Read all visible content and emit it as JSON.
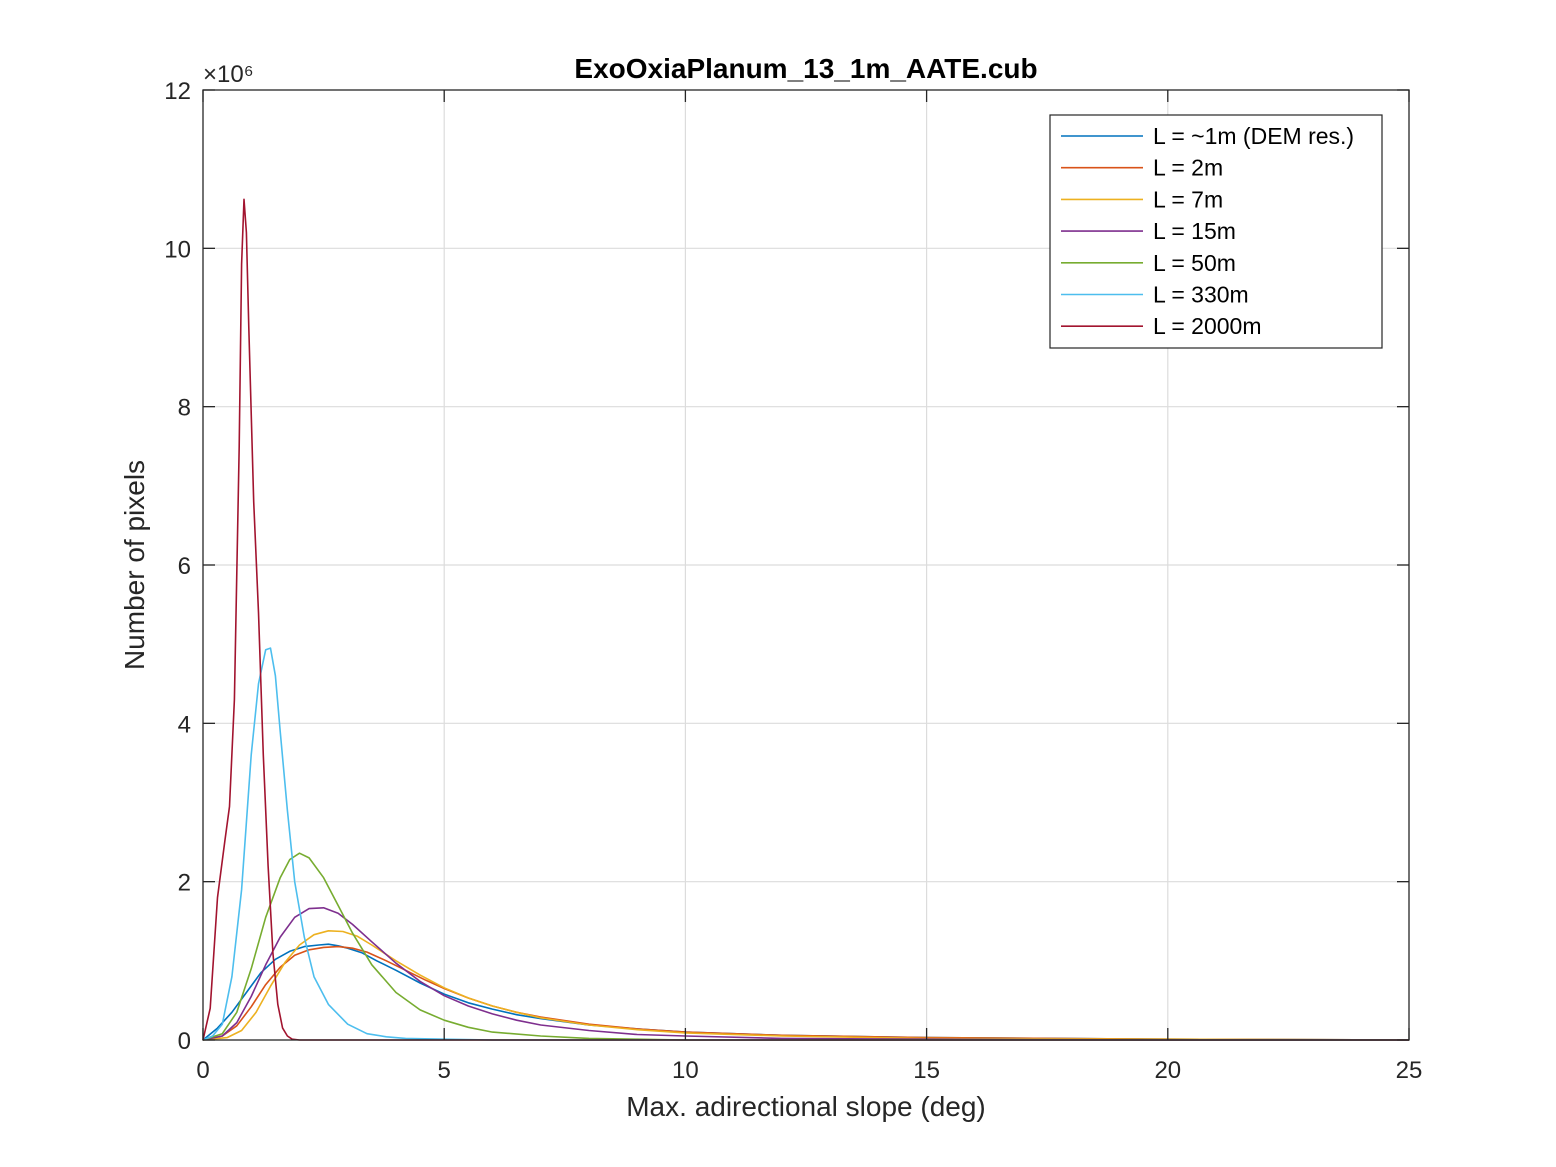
{
  "chart_data": {
    "type": "line",
    "title": "ExoOxiaPlanum_13_1m_AATE.cub",
    "xlabel": "Max. adirectional slope (deg)",
    "ylabel": "Number of pixels",
    "xlim": [
      0,
      25
    ],
    "ylim": [
      0,
      12
    ],
    "y_exponent_label": "×10⁶",
    "xticks": [
      "0",
      "5",
      "10",
      "15",
      "20",
      "25"
    ],
    "yticks": [
      "0",
      "2",
      "4",
      "6",
      "8",
      "10",
      "12"
    ],
    "grid": true,
    "legend_position": "top-right",
    "series": [
      {
        "name": "L = ~1m (DEM res.)",
        "color": "#0072bd",
        "x": [
          0,
          0.3,
          0.6,
          0.9,
          1.2,
          1.5,
          1.8,
          2.1,
          2.4,
          2.6,
          2.8,
          3.0,
          3.3,
          3.6,
          4.0,
          4.5,
          5.0,
          5.5,
          6.0,
          6.5,
          7.0,
          8.0,
          9.0,
          10.0,
          12.0,
          15.0,
          20.0,
          25.0
        ],
        "y": [
          0,
          0.15,
          0.35,
          0.6,
          0.85,
          1.02,
          1.12,
          1.18,
          1.2,
          1.21,
          1.19,
          1.16,
          1.1,
          1.0,
          0.88,
          0.72,
          0.58,
          0.47,
          0.39,
          0.32,
          0.27,
          0.19,
          0.14,
          0.1,
          0.06,
          0.03,
          0.01,
          0.0
        ]
      },
      {
        "name": "L = 2m",
        "color": "#d95319",
        "x": [
          0,
          0.4,
          0.7,
          1.0,
          1.3,
          1.6,
          1.9,
          2.2,
          2.5,
          2.8,
          3.1,
          3.4,
          3.8,
          4.2,
          4.6,
          5.0,
          5.5,
          6.0,
          6.5,
          7.0,
          8.0,
          9.0,
          10.0,
          12.0,
          15.0,
          20.0,
          25.0
        ],
        "y": [
          0,
          0.05,
          0.18,
          0.42,
          0.7,
          0.92,
          1.07,
          1.14,
          1.17,
          1.18,
          1.16,
          1.11,
          1.0,
          0.88,
          0.76,
          0.65,
          0.53,
          0.43,
          0.35,
          0.29,
          0.2,
          0.14,
          0.1,
          0.06,
          0.03,
          0.01,
          0.0
        ]
      },
      {
        "name": "L = 7m",
        "color": "#edb120",
        "x": [
          0,
          0.5,
          0.8,
          1.1,
          1.4,
          1.7,
          2.0,
          2.3,
          2.6,
          2.9,
          3.2,
          3.5,
          4.0,
          4.5,
          5.0,
          5.5,
          6.0,
          6.5,
          7.0,
          8.0,
          9.0,
          10.0,
          12.0,
          15.0,
          20.0,
          25.0
        ],
        "y": [
          0,
          0.03,
          0.12,
          0.35,
          0.68,
          0.98,
          1.2,
          1.33,
          1.38,
          1.37,
          1.31,
          1.2,
          1.0,
          0.82,
          0.66,
          0.53,
          0.43,
          0.35,
          0.28,
          0.19,
          0.13,
          0.09,
          0.05,
          0.02,
          0.01,
          0.0
        ]
      },
      {
        "name": "L = 15m",
        "color": "#7e2f8e",
        "x": [
          0,
          0.4,
          0.7,
          1.0,
          1.3,
          1.6,
          1.9,
          2.2,
          2.5,
          2.8,
          3.1,
          3.5,
          4.0,
          4.5,
          5.0,
          5.5,
          6.0,
          6.5,
          7.0,
          8.0,
          9.0,
          10.0,
          12.0,
          15.0,
          20.0,
          25.0
        ],
        "y": [
          0,
          0.05,
          0.22,
          0.55,
          0.95,
          1.3,
          1.55,
          1.66,
          1.67,
          1.6,
          1.46,
          1.24,
          0.97,
          0.74,
          0.56,
          0.43,
          0.33,
          0.25,
          0.19,
          0.12,
          0.07,
          0.05,
          0.02,
          0.01,
          0.0,
          0.0
        ]
      },
      {
        "name": "L = 50m",
        "color": "#77ac30",
        "x": [
          0,
          0.4,
          0.7,
          1.0,
          1.3,
          1.6,
          1.8,
          2.0,
          2.2,
          2.5,
          2.8,
          3.1,
          3.5,
          4.0,
          4.5,
          5.0,
          5.5,
          6.0,
          7.0,
          8.0,
          9.0,
          10.0,
          12.0,
          15.0,
          20.0,
          25.0
        ],
        "y": [
          0,
          0.08,
          0.35,
          0.9,
          1.55,
          2.05,
          2.28,
          2.36,
          2.3,
          2.05,
          1.7,
          1.35,
          0.95,
          0.6,
          0.38,
          0.25,
          0.16,
          0.1,
          0.05,
          0.02,
          0.01,
          0.0,
          0.0,
          0.0,
          0.0,
          0.0
        ]
      },
      {
        "name": "L = 330m",
        "color": "#4dbeee",
        "x": [
          0,
          0.2,
          0.4,
          0.6,
          0.8,
          1.0,
          1.15,
          1.3,
          1.4,
          1.5,
          1.6,
          1.75,
          1.9,
          2.1,
          2.3,
          2.6,
          3.0,
          3.4,
          3.8,
          4.2,
          5.0,
          6.0,
          8.0,
          25.0
        ],
        "y": [
          0,
          0.05,
          0.2,
          0.8,
          1.9,
          3.6,
          4.5,
          4.93,
          4.95,
          4.6,
          3.9,
          2.9,
          2.0,
          1.3,
          0.8,
          0.45,
          0.2,
          0.08,
          0.04,
          0.02,
          0.01,
          0.0,
          0.0,
          0.0
        ]
      },
      {
        "name": "L = 2000m",
        "color": "#a2142f",
        "x": [
          0,
          0.15,
          0.3,
          0.45,
          0.55,
          0.65,
          0.75,
          0.8,
          0.85,
          0.9,
          0.95,
          1.05,
          1.15,
          1.25,
          1.35,
          1.45,
          1.55,
          1.65,
          1.75,
          1.85,
          2.0,
          25.0
        ],
        "y": [
          0,
          0.4,
          1.8,
          2.5,
          2.95,
          4.3,
          7.5,
          9.8,
          10.62,
          10.2,
          9.0,
          6.8,
          5.4,
          3.6,
          2.2,
          1.1,
          0.45,
          0.15,
          0.05,
          0.01,
          0.0,
          0.0
        ]
      }
    ]
  }
}
